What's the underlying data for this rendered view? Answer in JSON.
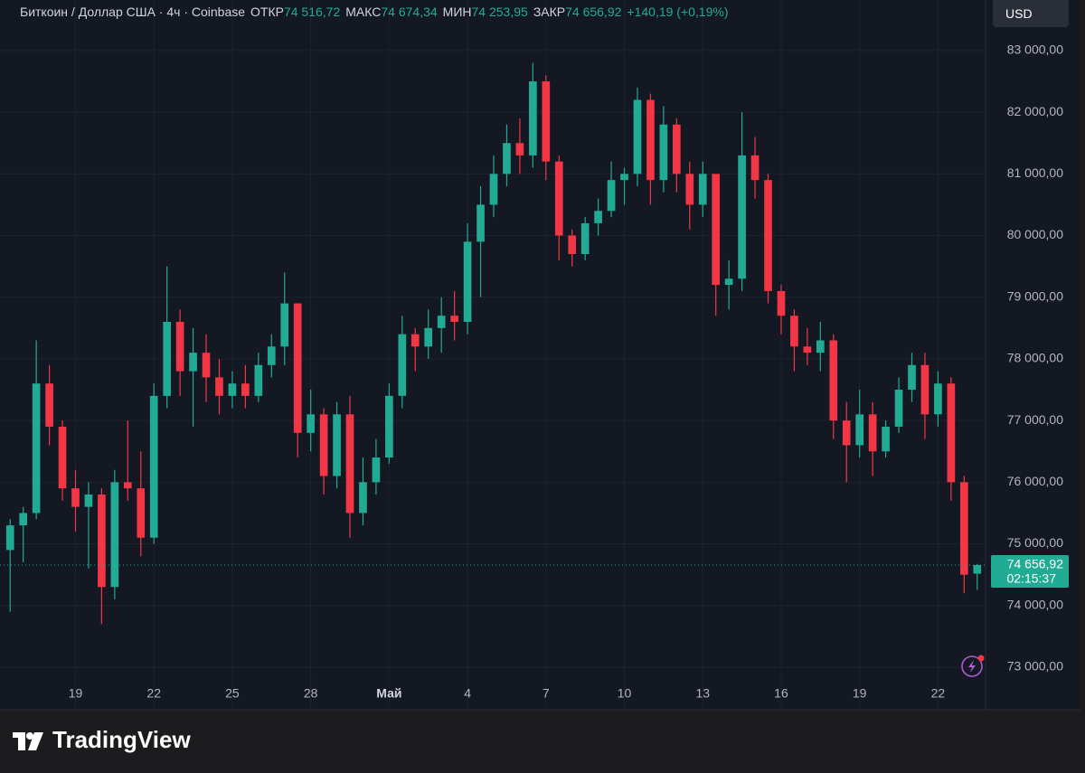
{
  "header": {
    "symbol": "Биткоин / Доллар США · 4ч · Coinbase",
    "fields": [
      {
        "label": "ОТКР",
        "value": "74 516,72"
      },
      {
        "label": "МАКС",
        "value": "74 674,34"
      },
      {
        "label": "МИН",
        "value": "74 253,95"
      },
      {
        "label": "ЗАКР",
        "value": "74 656,92"
      }
    ],
    "change": "+140,19 (+0,19%)"
  },
  "currency": "USD",
  "brand": "TradingView",
  "chart_data": {
    "type": "candlestick",
    "categories": [
      null,
      null,
      null,
      null,
      null,
      "19",
      null,
      null,
      null,
      null,
      null,
      "22",
      null,
      null,
      null,
      null,
      null,
      "25",
      null,
      null,
      null,
      null,
      null,
      "28",
      null,
      null,
      null,
      null,
      null,
      "Май",
      null,
      null,
      null,
      null,
      null,
      "4",
      null,
      null,
      null,
      null,
      null,
      "7",
      null,
      null,
      null,
      null,
      null,
      "10",
      null,
      null,
      null,
      null,
      null,
      "13",
      null,
      null,
      null,
      null,
      null,
      "16",
      null,
      null,
      null,
      null,
      null,
      "19",
      null,
      null,
      null,
      null,
      null,
      "22",
      null,
      null,
      null
    ],
    "open": [
      74900,
      75300,
      75500,
      77600,
      76900,
      75900,
      75600,
      75800,
      74300,
      76000,
      75900,
      75100,
      77400,
      78600,
      77800,
      78100,
      77700,
      77400,
      77600,
      77400,
      77900,
      78200,
      78900,
      76800,
      77100,
      76100,
      77100,
      75500,
      76000,
      76400,
      77400,
      78400,
      78200,
      78500,
      78700,
      78600,
      79900,
      80500,
      81000,
      81500,
      81300,
      82500,
      81200,
      80000,
      79700,
      80200,
      80400,
      80900,
      81000,
      82200,
      80900,
      81800,
      81000,
      80500,
      81000,
      79200,
      79300,
      81300,
      80900,
      79100,
      78700,
      78200,
      78100,
      78300,
      77000,
      76600,
      77100,
      76500,
      76900,
      77500,
      77900,
      77100,
      77600,
      76000,
      74516.72
    ],
    "high": [
      75400,
      75600,
      78300,
      77900,
      77000,
      76200,
      76000,
      75900,
      76200,
      77000,
      76500,
      77600,
      79500,
      78800,
      78500,
      78400,
      78000,
      77800,
      77900,
      78100,
      78400,
      79400,
      78900,
      77500,
      77200,
      77300,
      77400,
      76400,
      76700,
      77600,
      78700,
      78500,
      78800,
      79000,
      79100,
      80200,
      80800,
      81300,
      81800,
      81900,
      82800,
      82600,
      81300,
      80100,
      80300,
      80600,
      81200,
      81100,
      82400,
      82300,
      82100,
      81900,
      81200,
      81200,
      81000,
      79600,
      82000,
      81600,
      81000,
      79200,
      78800,
      78500,
      78600,
      78400,
      77300,
      77500,
      77300,
      77000,
      77700,
      78100,
      78100,
      77800,
      77700,
      76100,
      74674.34
    ],
    "low": [
      73900,
      74700,
      75400,
      76600,
      75700,
      75200,
      74600,
      73700,
      74100,
      75700,
      74800,
      75000,
      77200,
      77400,
      76900,
      77300,
      77100,
      77200,
      77200,
      77300,
      77700,
      77900,
      76400,
      76500,
      75800,
      75900,
      75100,
      75300,
      75800,
      76300,
      77200,
      77800,
      78000,
      78100,
      78300,
      78400,
      79000,
      80300,
      80800,
      81000,
      81100,
      80900,
      79600,
      79500,
      79600,
      80000,
      80300,
      80500,
      80800,
      80500,
      80700,
      80700,
      80100,
      80300,
      78700,
      78800,
      79100,
      80600,
      78900,
      78400,
      77800,
      77900,
      77800,
      76700,
      76000,
      76400,
      76100,
      76400,
      76800,
      77300,
      76700,
      76900,
      75700,
      74200,
      74253.95
    ],
    "close": [
      75300,
      75500,
      77600,
      76900,
      75900,
      75600,
      75800,
      74300,
      76000,
      75900,
      75100,
      77400,
      78600,
      77800,
      78100,
      77700,
      77400,
      77600,
      77400,
      77900,
      78200,
      78900,
      76800,
      77100,
      76100,
      77100,
      75500,
      76000,
      76400,
      77400,
      78400,
      78200,
      78500,
      78700,
      78600,
      79900,
      80500,
      81000,
      81500,
      81300,
      82500,
      81200,
      80000,
      79700,
      80200,
      80400,
      80900,
      81000,
      82200,
      80900,
      81800,
      81000,
      80500,
      81000,
      79200,
      79300,
      81300,
      80900,
      79100,
      78700,
      78200,
      78100,
      78300,
      77000,
      76600,
      77100,
      76500,
      76900,
      77500,
      77900,
      77100,
      77600,
      76000,
      74500,
      74656.92
    ],
    "up_color": "#22ab94",
    "down_color": "#f23645",
    "ylim": [
      72750,
      83820
    ],
    "yticks": [
      {
        "value": 73000,
        "label": "73 000,00"
      },
      {
        "value": 74000,
        "label": "74 000,00"
      },
      {
        "value": 75000,
        "label": "75 000,00"
      },
      {
        "value": 76000,
        "label": "76 000,00"
      },
      {
        "value": 77000,
        "label": "77 000,00"
      },
      {
        "value": 78000,
        "label": "78 000,00"
      },
      {
        "value": 79000,
        "label": "79 000,00"
      },
      {
        "value": 80000,
        "label": "80 000,00"
      },
      {
        "value": 81000,
        "label": "81 000,00"
      },
      {
        "value": 82000,
        "label": "82 000,00"
      },
      {
        "value": 83000,
        "label": "83 000,00"
      }
    ],
    "grid": true,
    "price_tag": {
      "value": 74656.92,
      "label": "74 656,92",
      "countdown": "02:15:37"
    }
  }
}
